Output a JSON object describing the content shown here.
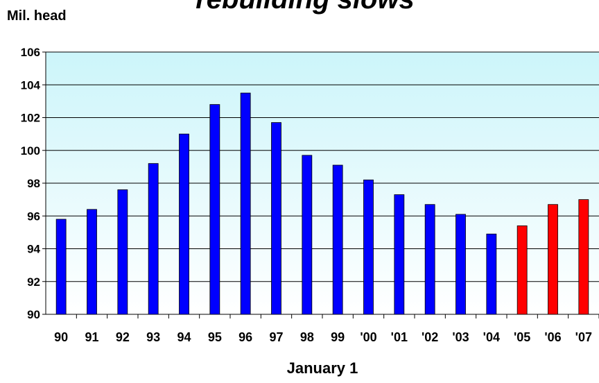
{
  "chart_data": {
    "type": "bar",
    "title": "rebuilding slows",
    "y_label": "Mil. head",
    "x_label": "January 1",
    "categories": [
      "90",
      "91",
      "92",
      "93",
      "94",
      "95",
      "96",
      "97",
      "98",
      "99",
      "'00",
      "'01",
      "'02",
      "'03",
      "'04",
      "'05",
      "'06",
      "'07"
    ],
    "values": [
      95.8,
      96.4,
      97.6,
      99.2,
      101.0,
      102.8,
      103.5,
      101.7,
      99.7,
      99.1,
      98.2,
      97.3,
      96.7,
      96.1,
      94.9,
      95.4,
      96.7,
      97.0
    ],
    "colors": [
      "#0000ff",
      "#0000ff",
      "#0000ff",
      "#0000ff",
      "#0000ff",
      "#0000ff",
      "#0000ff",
      "#0000ff",
      "#0000ff",
      "#0000ff",
      "#0000ff",
      "#0000ff",
      "#0000ff",
      "#0000ff",
      "#0000ff",
      "#ff0000",
      "#ff0000",
      "#ff0000"
    ],
    "ylim": [
      90,
      106
    ],
    "yticks": [
      90,
      92,
      94,
      96,
      98,
      100,
      102,
      104,
      106
    ],
    "grid": true
  }
}
